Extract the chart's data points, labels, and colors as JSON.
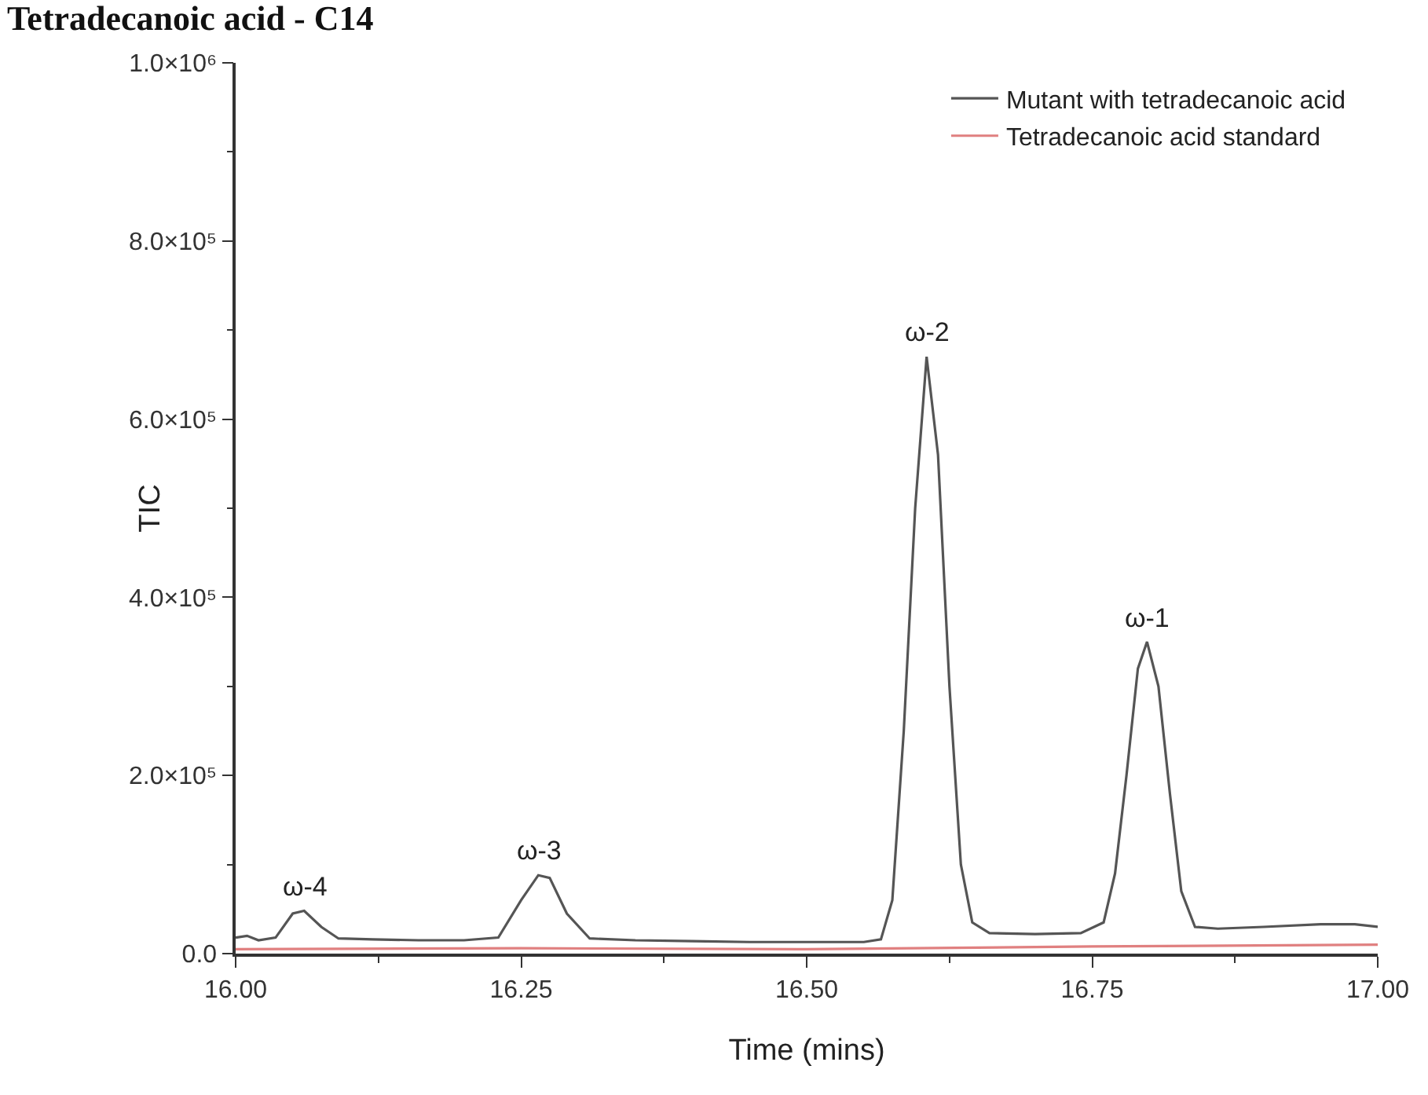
{
  "chart_data": {
    "type": "line",
    "title": "Tetradecanoic acid - C14",
    "xlabel": "Time (mins)",
    "ylabel": "TIC",
    "xlim": [
      16.0,
      17.0
    ],
    "xticks": [
      {
        "value": 16.0,
        "label": "16.00"
      },
      {
        "value": 16.25,
        "label": "16.25"
      },
      {
        "value": 16.5,
        "label": "16.50"
      },
      {
        "value": 16.75,
        "label": "16.75"
      },
      {
        "value": 17.0,
        "label": "17.00"
      }
    ],
    "ylim": [
      0,
      1000000
    ],
    "yticks": [
      {
        "value": 0,
        "label": "0.0"
      },
      {
        "value": 200000,
        "label": "2.0×10⁵"
      },
      {
        "value": 400000,
        "label": "4.0×10⁵"
      },
      {
        "value": 600000,
        "label": "6.0×10⁵"
      },
      {
        "value": 800000,
        "label": "8.0×10⁵"
      },
      {
        "value": 1000000,
        "label": "1.0×10⁶"
      }
    ],
    "grid": false,
    "legend": "top right",
    "marker": "none",
    "line_style": "solid",
    "series": [
      {
        "name": "Mutant with tetradecanoic acid",
        "color": "#555555",
        "x": [
          16.0,
          16.01,
          16.02,
          16.035,
          16.05,
          16.06,
          16.075,
          16.09,
          16.12,
          16.16,
          16.2,
          16.23,
          16.25,
          16.265,
          16.275,
          16.29,
          16.31,
          16.35,
          16.4,
          16.45,
          16.5,
          16.55,
          16.565,
          16.575,
          16.585,
          16.595,
          16.605,
          16.615,
          16.625,
          16.635,
          16.645,
          16.66,
          16.7,
          16.74,
          16.76,
          16.77,
          16.78,
          16.79,
          16.798,
          16.808,
          16.818,
          16.828,
          16.84,
          16.86,
          16.9,
          16.95,
          16.98,
          17.0
        ],
        "values": [
          18000,
          20000,
          15000,
          18000,
          45000,
          48000,
          30000,
          17000,
          16000,
          15000,
          15000,
          18000,
          60000,
          88000,
          85000,
          45000,
          17000,
          15000,
          14000,
          13000,
          13000,
          13000,
          16000,
          60000,
          250000,
          500000,
          670000,
          560000,
          300000,
          100000,
          35000,
          23000,
          22000,
          23000,
          35000,
          90000,
          200000,
          320000,
          350000,
          300000,
          180000,
          70000,
          30000,
          28000,
          30000,
          33000,
          33000,
          30000
        ]
      },
      {
        "name": "Tetradecanoic acid standard",
        "color": "#e08080",
        "x": [
          16.0,
          16.25,
          16.5,
          16.75,
          17.0
        ],
        "values": [
          5000,
          6000,
          5000,
          8000,
          10000
        ]
      }
    ],
    "annotations": [
      {
        "text": "ω-4",
        "x": 16.06,
        "y": 48000
      },
      {
        "text": "ω-3",
        "x": 16.265,
        "y": 88000
      },
      {
        "text": "ω-2",
        "x": 16.605,
        "y": 670000
      },
      {
        "text": "ω-1",
        "x": 16.798,
        "y": 350000
      }
    ]
  }
}
